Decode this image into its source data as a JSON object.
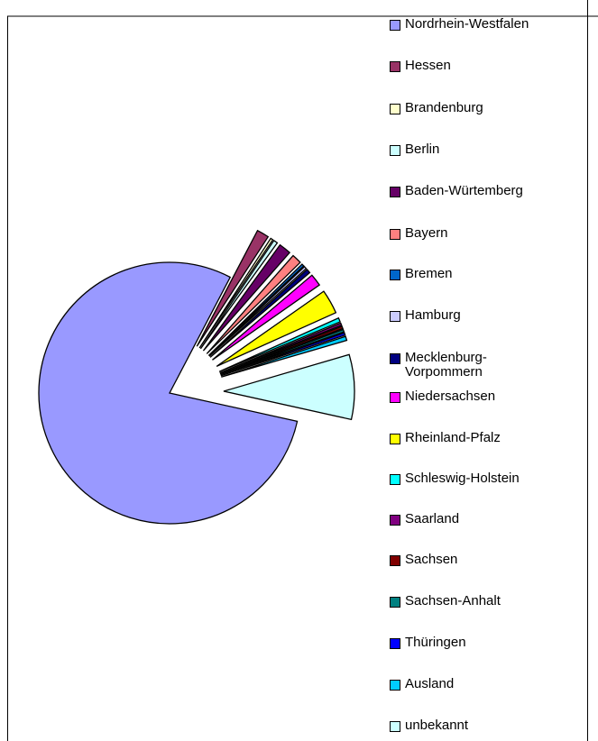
{
  "chart_data": {
    "type": "pie",
    "categories": [
      "Nordrhein-Westfalen",
      "Hessen",
      "Brandenburg",
      "Berlin",
      "Baden-Würtemberg",
      "Bayern",
      "Bremen",
      "Hamburg",
      "Mecklenburg-Vorpommern",
      "Niedersachsen",
      "Rheinland-Pfalz",
      "Schleswig-Holstein",
      "Saarland",
      "Sachsen",
      "Sachsen-Anhalt",
      "Thüringen",
      "Ausland",
      "unbekannt"
    ],
    "values": [
      79.2,
      1.5,
      0.3,
      0.5,
      1.5,
      1.2,
      0.3,
      0.3,
      0.5,
      1.5,
      3,
      0.5,
      0.3,
      0.3,
      0.3,
      0.3,
      0.5,
      8
    ],
    "colors": [
      "#9999ff",
      "#993366",
      "#ffffcc",
      "#ccffff",
      "#660066",
      "#ff8080",
      "#0066cc",
      "#ccccff",
      "#000080",
      "#ff00ff",
      "#ffff00",
      "#00ffff",
      "#800080",
      "#800000",
      "#008080",
      "#0000ff",
      "#00ccff",
      "#ccffff"
    ]
  }
}
